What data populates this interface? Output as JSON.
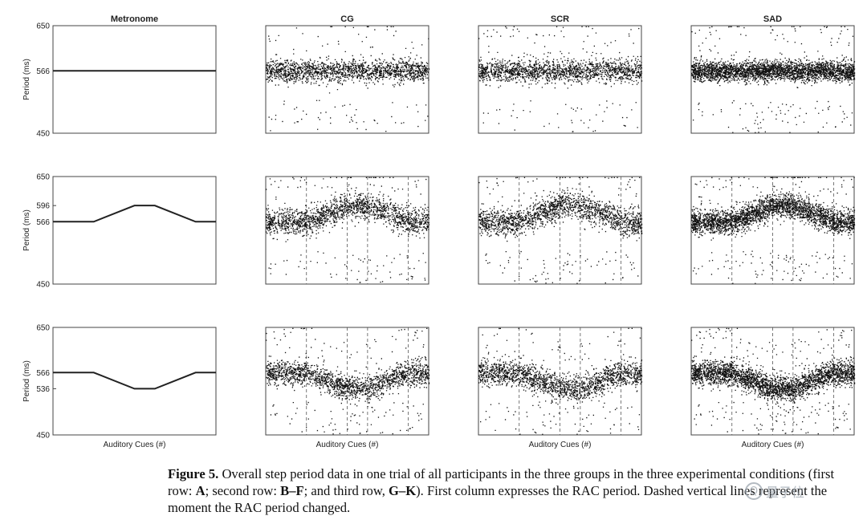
{
  "figure": {
    "columns": [
      "Metronome",
      "CG",
      "SCR",
      "SAD"
    ],
    "y_axis_label": "Period (ms)",
    "x_axis_label": "Auditory Cues (#)"
  },
  "caption": {
    "label": "Figure 5.",
    "text_1": " Overall step period data in one trial of all participants in the three groups in the three experimental conditions (first row: ",
    "bold_a": "A",
    "text_2": "; second row: ",
    "bold_bf": "B–F",
    "text_3": "; and third row, ",
    "bold_gk": "G–K",
    "text_4": "). First column expresses the RAC period. Dashed vertical lines represent the moment the RAC period changed."
  },
  "watermark": {
    "text": "量子位",
    "logo": "qbitai-logo-icon"
  },
  "chart_data": [
    {
      "type": "line",
      "panel": "A",
      "title": "Metronome",
      "ylabel": "Period (ms)",
      "ylim": [
        450,
        650
      ],
      "yticks": [
        450,
        566,
        650
      ],
      "x": [
        0,
        1
      ],
      "y": [
        566,
        566
      ]
    },
    {
      "type": "scatter",
      "panel": "B",
      "title": "CG",
      "ylim": [
        450,
        650
      ],
      "center": 566,
      "spread": 10,
      "outliers": 0.06,
      "n": 1800,
      "dashed_lines": []
    },
    {
      "type": "scatter",
      "panel": "C",
      "title": "SCR",
      "ylim": [
        450,
        650
      ],
      "center": 566,
      "spread": 10,
      "outliers": 0.06,
      "n": 1800,
      "dashed_lines": []
    },
    {
      "type": "scatter",
      "panel": "D",
      "title": "SAD",
      "ylim": [
        450,
        650
      ],
      "center": 566,
      "spread": 9,
      "outliers": 0.05,
      "n": 3200,
      "dashed_lines": []
    },
    {
      "type": "line",
      "panel": "E",
      "ylabel": "Period (ms)",
      "ylim": [
        450,
        650
      ],
      "yticks": [
        450,
        566,
        596,
        650
      ],
      "x": [
        0,
        0.25,
        0.5,
        0.625,
        0.875,
        1
      ],
      "y": [
        566,
        566,
        596,
        596,
        566,
        566
      ]
    },
    {
      "type": "scatter",
      "panel": "F",
      "ylim": [
        450,
        650
      ],
      "profile": [
        [
          0,
          566
        ],
        [
          0.25,
          566
        ],
        [
          0.5,
          596
        ],
        [
          0.625,
          596
        ],
        [
          0.875,
          566
        ],
        [
          1,
          566
        ]
      ],
      "spread": 12,
      "outliers": 0.07,
      "n": 1900,
      "dashed_lines": [
        0.25,
        0.5,
        0.625,
        0.875
      ]
    },
    {
      "type": "scatter",
      "panel": "G",
      "ylim": [
        450,
        650
      ],
      "profile": [
        [
          0,
          566
        ],
        [
          0.25,
          566
        ],
        [
          0.5,
          596
        ],
        [
          0.625,
          596
        ],
        [
          0.875,
          566
        ],
        [
          1,
          566
        ]
      ],
      "spread": 12,
      "outliers": 0.07,
      "n": 1900,
      "dashed_lines": [
        0.25,
        0.5,
        0.625,
        0.875
      ]
    },
    {
      "type": "scatter",
      "panel": "H",
      "ylim": [
        450,
        650
      ],
      "profile": [
        [
          0,
          566
        ],
        [
          0.25,
          566
        ],
        [
          0.5,
          596
        ],
        [
          0.625,
          596
        ],
        [
          0.875,
          566
        ],
        [
          1,
          566
        ]
      ],
      "spread": 11,
      "outliers": 0.06,
      "n": 3000,
      "dashed_lines": [
        0.25,
        0.5,
        0.625,
        0.875
      ]
    },
    {
      "type": "line",
      "panel": "I",
      "ylabel": "Period (ms)",
      "xlabel": "Auditory Cues (#)",
      "ylim": [
        450,
        650
      ],
      "yticks": [
        450,
        536,
        566,
        650
      ],
      "x": [
        0,
        0.25,
        0.5,
        0.625,
        0.875,
        1
      ],
      "y": [
        566,
        566,
        536,
        536,
        566,
        566
      ]
    },
    {
      "type": "scatter",
      "panel": "J",
      "xlabel": "Auditory Cues (#)",
      "ylim": [
        450,
        650
      ],
      "profile": [
        [
          0,
          566
        ],
        [
          0.25,
          566
        ],
        [
          0.5,
          536
        ],
        [
          0.625,
          536
        ],
        [
          0.875,
          566
        ],
        [
          1,
          566
        ]
      ],
      "spread": 11,
      "outliers": 0.07,
      "n": 1900,
      "dashed_lines": [
        0.25,
        0.5,
        0.625,
        0.875
      ]
    },
    {
      "type": "scatter",
      "panel": "K",
      "xlabel": "Auditory Cues (#)",
      "ylim": [
        450,
        650
      ],
      "profile": [
        [
          0,
          566
        ],
        [
          0.25,
          566
        ],
        [
          0.5,
          536
        ],
        [
          0.625,
          536
        ],
        [
          0.875,
          566
        ],
        [
          1,
          566
        ]
      ],
      "spread": 12,
      "outliers": 0.07,
      "n": 1900,
      "dashed_lines": [
        0.25,
        0.5,
        0.625,
        0.875
      ]
    },
    {
      "type": "scatter",
      "panel": "L",
      "xlabel": "Auditory Cues (#)",
      "ylim": [
        450,
        650
      ],
      "profile": [
        [
          0,
          566
        ],
        [
          0.25,
          566
        ],
        [
          0.5,
          536
        ],
        [
          0.625,
          536
        ],
        [
          0.875,
          566
        ],
        [
          1,
          566
        ]
      ],
      "spread": 11,
      "outliers": 0.06,
      "n": 3000,
      "dashed_lines": [
        0.25,
        0.5,
        0.625,
        0.875
      ]
    }
  ]
}
